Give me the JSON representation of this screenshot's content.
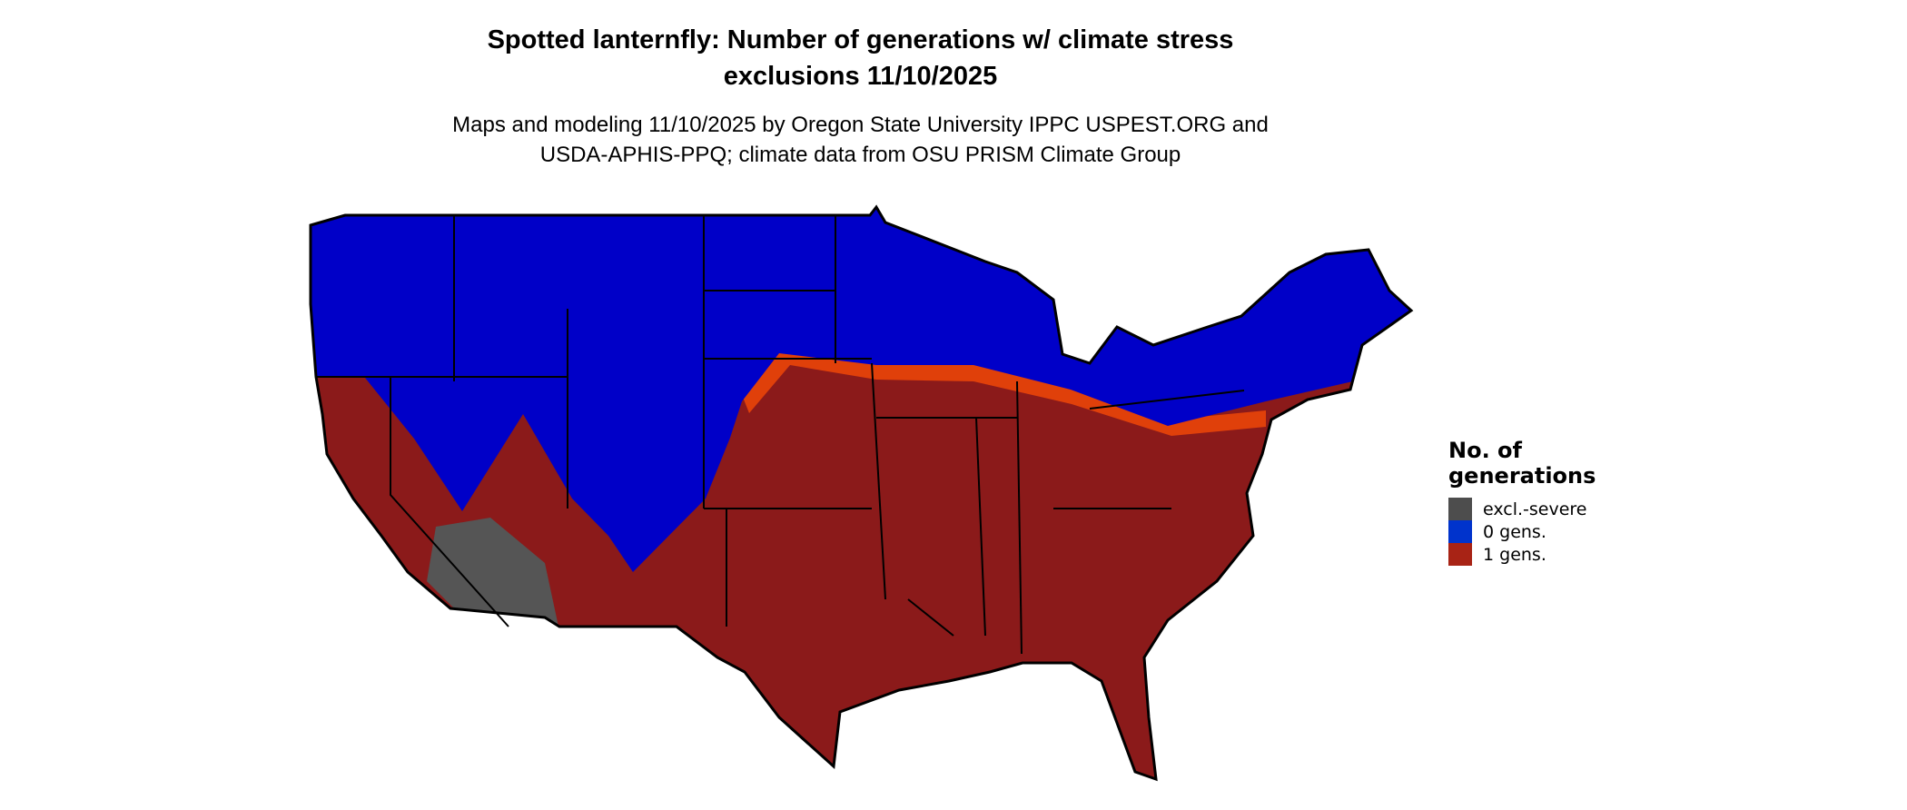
{
  "title": {
    "line1": "Spotted lanternfly: Number of generations w/ climate stress",
    "line2": "exclusions 11/10/2025"
  },
  "subtitle": {
    "line1": "Maps and modeling 11/10/2025 by Oregon State University IPPC USPEST.ORG and",
    "line2": "USDA-APHIS-PPQ; climate data from OSU PRISM Climate Group"
  },
  "legend": {
    "title_line1": "No. of",
    "title_line2": "generations",
    "items": [
      {
        "label": "excl.-severe",
        "color": "#4d4d4d"
      },
      {
        "label": "0 gens.",
        "color": "#0033cc"
      },
      {
        "label": "1 gens.",
        "color": "#a82315"
      }
    ]
  },
  "map_colors": {
    "one_gen": "#8b1a1a",
    "zero_gen": "#0000c8",
    "excluded": "#555555",
    "transition": "#e0400a",
    "border": "#000000"
  }
}
